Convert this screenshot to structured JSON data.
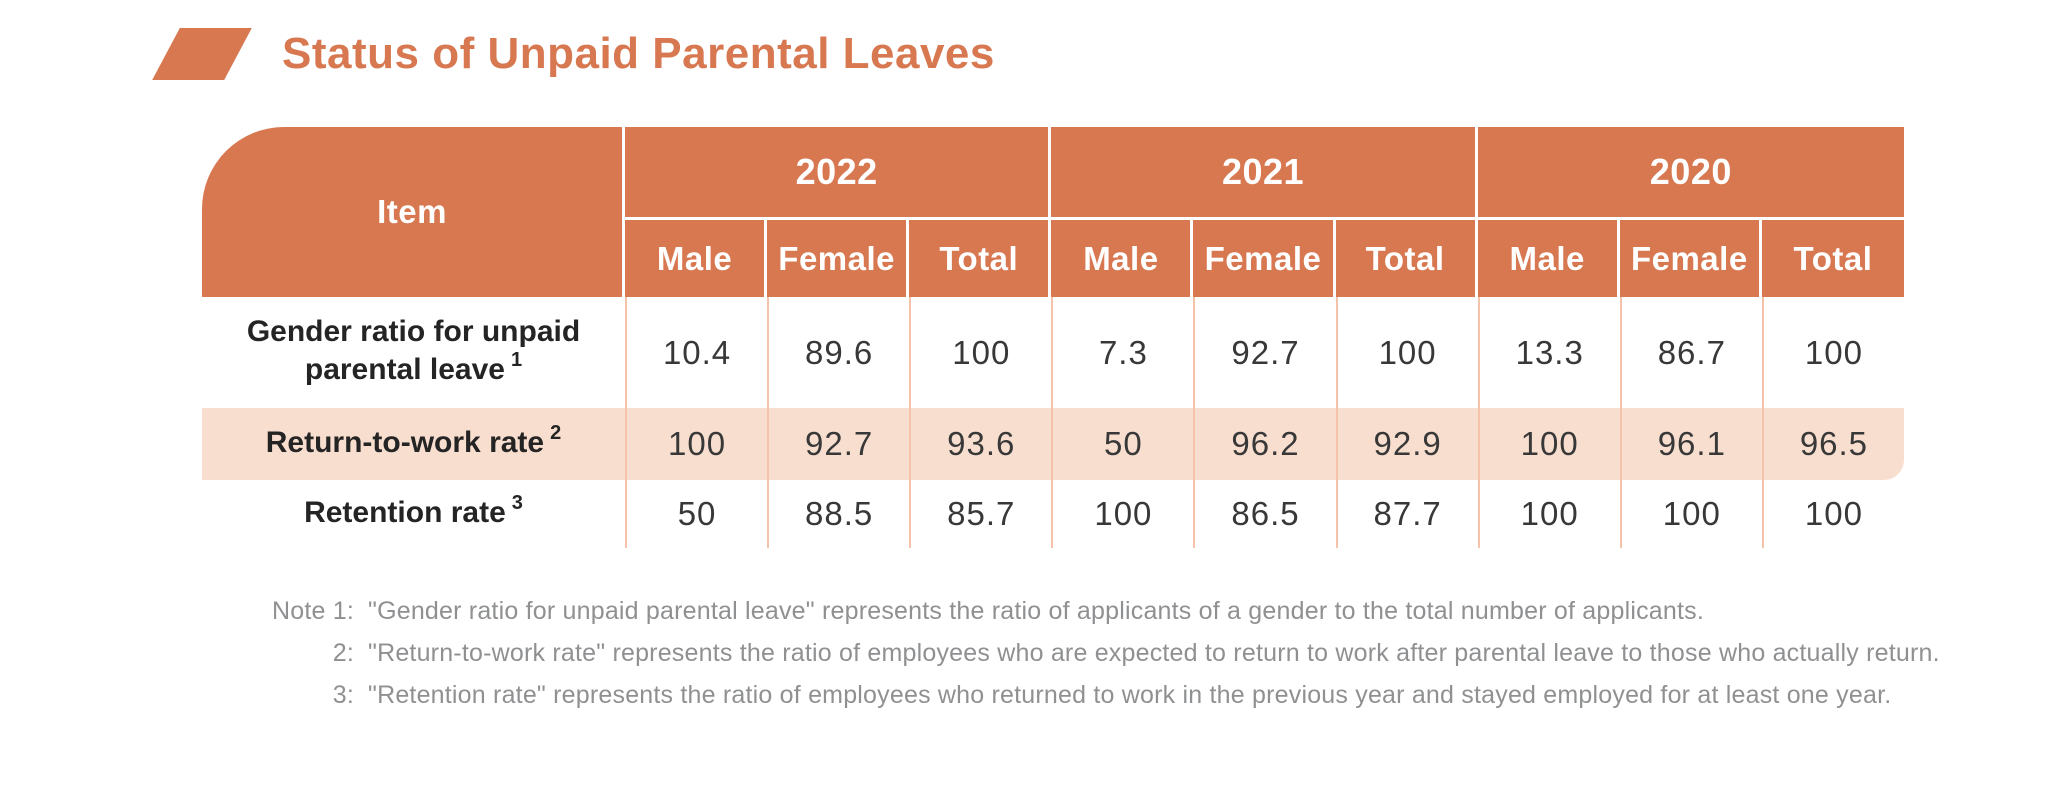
{
  "title": {
    "text": "Status of Unpaid Parental Leaves"
  },
  "colors": {
    "accent": "#D87851",
    "row_highlight": "#F8DECF",
    "grid_line": "#F5C2AA",
    "value_text": "#383838",
    "note_text": "#8F9092"
  },
  "table": {
    "item_header": "Item",
    "years": [
      "2022",
      "2021",
      "2020"
    ],
    "gender_headers": [
      "Male",
      "Female",
      "Total"
    ],
    "rows": [
      {
        "label": "Gender ratio for unpaid parental leave",
        "note_ref": "1",
        "values": [
          "10.4",
          "89.6",
          "100",
          "7.3",
          "92.7",
          "100",
          "13.3",
          "86.7",
          "100"
        ]
      },
      {
        "label": "Return-to-work rate",
        "note_ref": "2",
        "values": [
          "100",
          "92.7",
          "93.6",
          "50",
          "96.2",
          "92.9",
          "100",
          "96.1",
          "96.5"
        ]
      },
      {
        "label": "Retention rate",
        "note_ref": "3",
        "values": [
          "50",
          "88.5",
          "85.7",
          "100",
          "86.5",
          "87.7",
          "100",
          "100",
          "100"
        ]
      }
    ]
  },
  "notes": [
    {
      "label": "Note 1:",
      "text": "\"Gender ratio for unpaid parental leave\" represents the ratio of applicants of a gender to the total number of applicants."
    },
    {
      "label": "2:",
      "text": "\"Return-to-work rate\" represents the ratio of employees who are expected to return to work after parental leave to those who actually return."
    },
    {
      "label": "3:",
      "text": "\"Retention rate\" represents the ratio of employees who returned to work in the previous year and stayed employed for at least one year."
    }
  ]
}
